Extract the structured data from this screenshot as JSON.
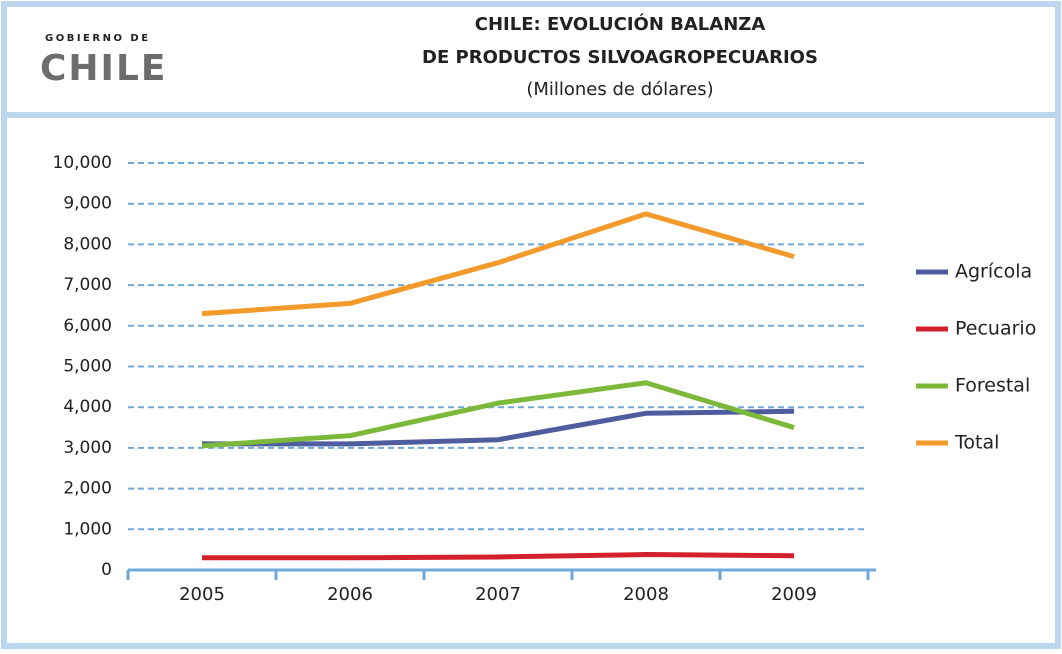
{
  "logo": {
    "top": "GOBIERNO DE",
    "name": "CHILE"
  },
  "chart_data": {
    "type": "line",
    "title": [
      "CHILE: EVOLUCIÓN BALANZA",
      "DE PRODUCTOS SILVOAGROPECUARIOS"
    ],
    "subtitle": "(Millones de dólares)",
    "categories": [
      "2005",
      "2006",
      "2007",
      "2008",
      "2009"
    ],
    "series": [
      {
        "name": "Agrícola",
        "color": "#4f5c9e",
        "values": [
          3100,
          3100,
          3200,
          3850,
          3900
        ]
      },
      {
        "name": "Pecuario",
        "color": "#d2202c",
        "values": [
          300,
          300,
          320,
          380,
          350
        ]
      },
      {
        "name": "Forestal",
        "color": "#7cb83a",
        "values": [
          3050,
          3300,
          4100,
          4600,
          3500
        ]
      },
      {
        "name": "Total",
        "color": "#f39a2b",
        "values": [
          6300,
          6550,
          7550,
          8750,
          7700
        ]
      }
    ],
    "ylim": [
      0,
      10000
    ],
    "yticks": [
      0,
      {
        "value": 1000,
        "label": "1,000"
      },
      {
        "value": 2000,
        "label": "2,000"
      },
      {
        "value": 3000,
        "label": "3,000"
      },
      {
        "value": 4000,
        "label": "4,000"
      },
      {
        "value": 5000,
        "label": "5,000"
      },
      {
        "value": 6000,
        "label": "6,000"
      },
      {
        "value": 7000,
        "label": "7,000"
      },
      {
        "value": 8000,
        "label": "8,000"
      },
      {
        "value": 9000,
        "label": "9,000"
      },
      {
        "value": 10000,
        "label": "10,000"
      }
    ],
    "grid": true,
    "legend": "right"
  }
}
